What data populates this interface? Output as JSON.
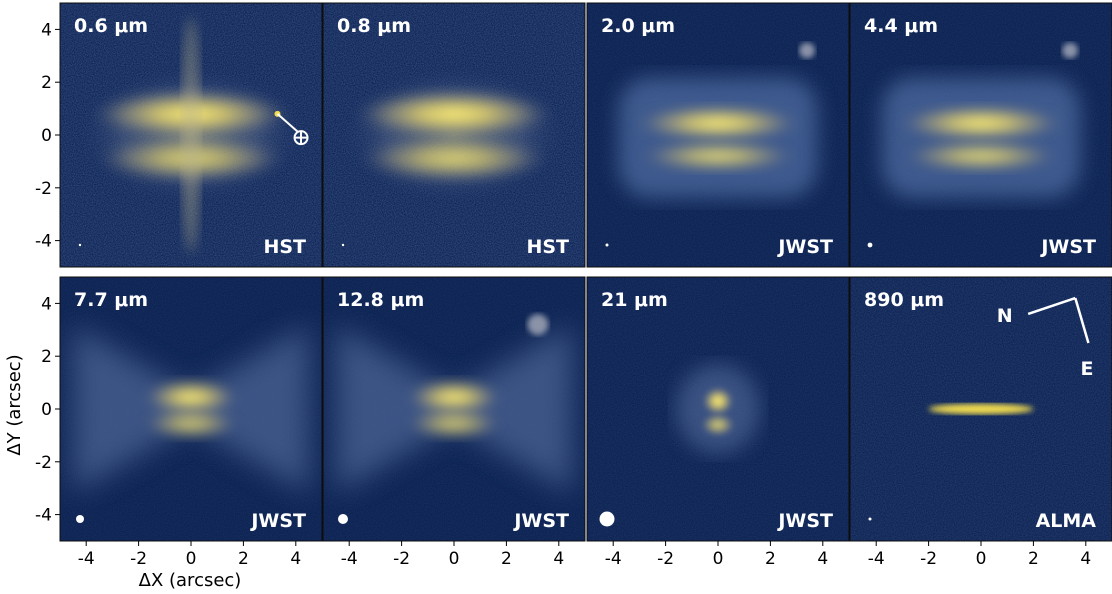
{
  "axes": {
    "xlabel": "ΔX (arcsec)",
    "ylabel": "ΔY (arcsec)",
    "xticks": [
      "-4",
      "-2",
      "0",
      "2",
      "4"
    ],
    "yticks": [
      "4",
      "2",
      "0",
      "-2",
      "-4"
    ]
  },
  "panels": [
    {
      "id": "p1",
      "wavelength": "0.6 μm",
      "telescope": "HST"
    },
    {
      "id": "p2",
      "wavelength": "0.8 μm",
      "telescope": "HST"
    },
    {
      "id": "p3",
      "wavelength": "2.0 μm",
      "telescope": "JWST"
    },
    {
      "id": "p4",
      "wavelength": "4.4 μm",
      "telescope": "JWST"
    },
    {
      "id": "p5",
      "wavelength": "7.7 μm",
      "telescope": "JWST"
    },
    {
      "id": "p6",
      "wavelength": "12.8 μm",
      "telescope": "JWST"
    },
    {
      "id": "p7",
      "wavelength": "21 μm",
      "telescope": "JWST"
    },
    {
      "id": "p8",
      "wavelength": "890 μm",
      "telescope": "ALMA"
    }
  ],
  "compass": {
    "north": "N",
    "east": "E"
  },
  "colors": {
    "background": "#0a2150",
    "emission": "#f2dc50"
  }
}
